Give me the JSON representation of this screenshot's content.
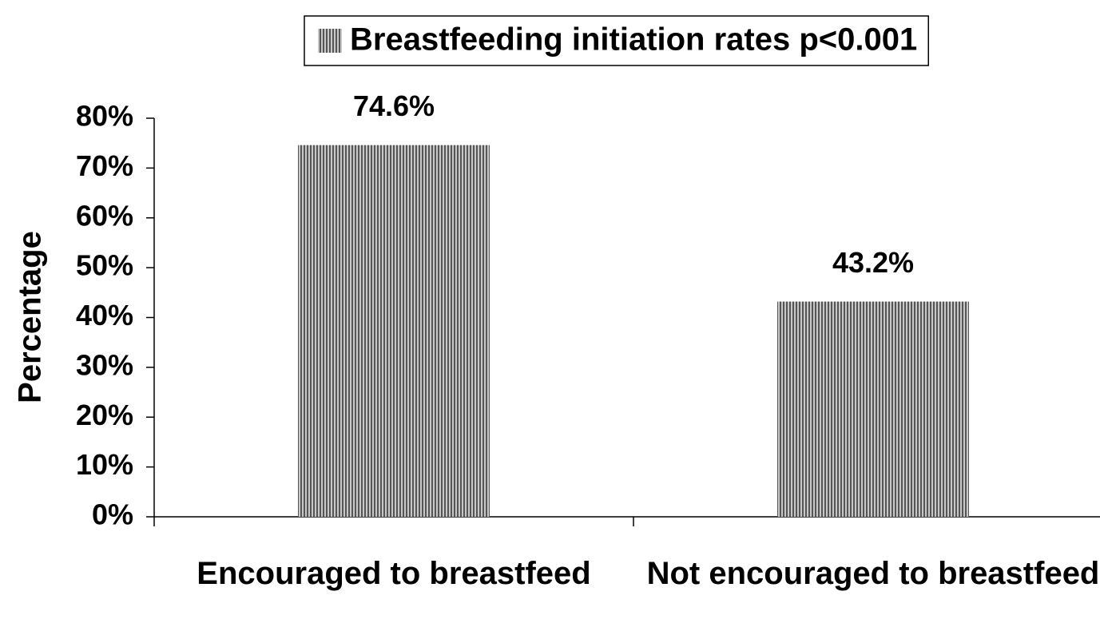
{
  "chart_data": {
    "type": "bar",
    "y_label": "Percentage",
    "categories": [
      "Encouraged to breastfeed",
      "Not encouraged to breastfeed"
    ],
    "series": [
      {
        "name": "Breastfeeding initiation rates p<0.001",
        "color": "#555555",
        "values": [
          74.6,
          43.2
        ],
        "value_labels": [
          "74.6%",
          "43.2%"
        ]
      }
    ],
    "ylim": [
      0,
      80
    ],
    "yticks": [
      {
        "value": 0,
        "label": "0%"
      },
      {
        "value": 10,
        "label": "10%"
      },
      {
        "value": 20,
        "label": "20%"
      },
      {
        "value": 30,
        "label": "30%"
      },
      {
        "value": 40,
        "label": "40%"
      },
      {
        "value": 50,
        "label": "50%"
      },
      {
        "value": 60,
        "label": "60%"
      },
      {
        "value": 70,
        "label": "70%"
      },
      {
        "value": 80,
        "label": "80%"
      }
    ],
    "grid": false,
    "legend": "top"
  }
}
